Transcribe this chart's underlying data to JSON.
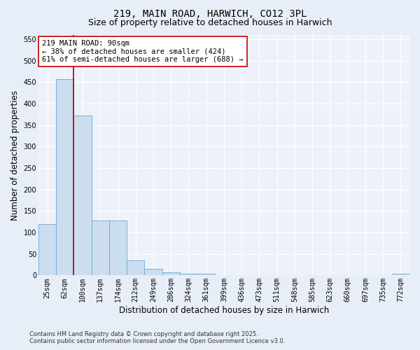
{
  "title": "219, MAIN ROAD, HARWICH, CO12 3PL",
  "subtitle": "Size of property relative to detached houses in Harwich",
  "xlabel": "Distribution of detached houses by size in Harwich",
  "ylabel": "Number of detached properties",
  "categories": [
    "25sqm",
    "62sqm",
    "100sqm",
    "137sqm",
    "174sqm",
    "212sqm",
    "249sqm",
    "286sqm",
    "324sqm",
    "361sqm",
    "399sqm",
    "436sqm",
    "473sqm",
    "511sqm",
    "548sqm",
    "585sqm",
    "623sqm",
    "660sqm",
    "697sqm",
    "735sqm",
    "772sqm"
  ],
  "values": [
    120,
    457,
    373,
    128,
    128,
    35,
    15,
    8,
    4,
    4,
    1,
    0,
    0,
    0,
    0,
    0,
    0,
    0,
    0,
    0,
    4
  ],
  "bar_color": "#ccddf0",
  "bar_edge_color": "#6aaad4",
  "vline_x_index": 1,
  "vline_color": "#aa0000",
  "annotation_line1": "219 MAIN ROAD: 90sqm",
  "annotation_line2": "← 38% of detached houses are smaller (424)",
  "annotation_line3": "61% of semi-detached houses are larger (688) →",
  "annotation_box_color": "#ffffff",
  "annotation_box_edge": "#cc0000",
  "ylim": [
    0,
    560
  ],
  "yticks": [
    0,
    50,
    100,
    150,
    200,
    250,
    300,
    350,
    400,
    450,
    500,
    550
  ],
  "background_color": "#e8eef8",
  "plot_bg_color": "#edf2fa",
  "grid_color": "#ffffff",
  "footer": "Contains HM Land Registry data © Crown copyright and database right 2025.\nContains public sector information licensed under the Open Government Licence v3.0.",
  "title_fontsize": 10,
  "subtitle_fontsize": 9,
  "axis_label_fontsize": 8.5,
  "tick_fontsize": 7,
  "annotation_fontsize": 7.5,
  "footer_fontsize": 6
}
